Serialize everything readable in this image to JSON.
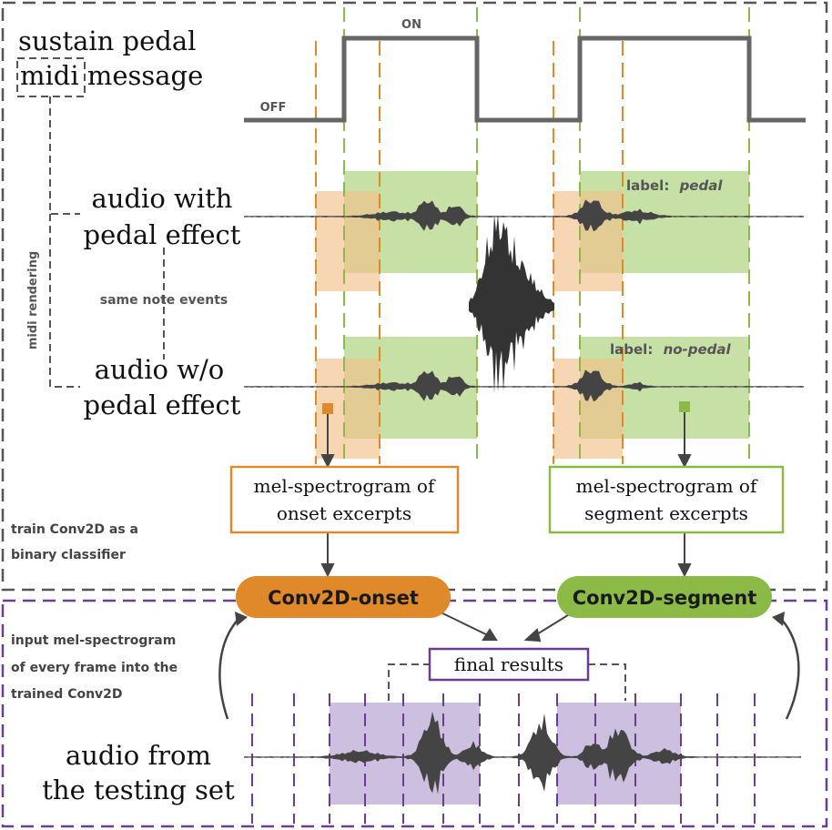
{
  "pedal_section": {
    "title_line1": "sustain pedal",
    "title_line2": "midi message",
    "midi_word": "midi",
    "on_label": "ON",
    "off_label": "OFF"
  },
  "audio_with": {
    "line1": "audio with",
    "line2": "pedal effect",
    "label_prefix": "label:",
    "label_value": "pedal"
  },
  "audio_without": {
    "line1": "audio w/o",
    "line2": "pedal effect",
    "label_prefix": "label:",
    "label_value": "no-pedal"
  },
  "annotations": {
    "midi_rendering": "midi rendering",
    "same_note_events": "same note events",
    "train_line1": "train Conv2D as a",
    "train_line2": "binary classifier",
    "input_line1": "input mel-spectrogram",
    "input_line2": "of every frame into the",
    "input_line3": "trained Conv2D"
  },
  "boxes": {
    "onset_line1": "mel-spectrogram of",
    "onset_line2": "onset excerpts",
    "segment_line1": "mel-spectrogram of",
    "segment_line2": "segment excerpts",
    "final_results": "final results"
  },
  "models": {
    "onset": "Conv2D-onset",
    "segment": "Conv2D-segment"
  },
  "testing": {
    "line1": "audio from",
    "line2": "the testing set"
  },
  "colors": {
    "orange": "#e0892a",
    "orange_fill": "#f3c08a",
    "green": "#8bbb46",
    "green_fill": "#b9d88f",
    "purple": "#6b3d8f",
    "purple_fill": "#b8a4d2",
    "gray": "#555555"
  }
}
